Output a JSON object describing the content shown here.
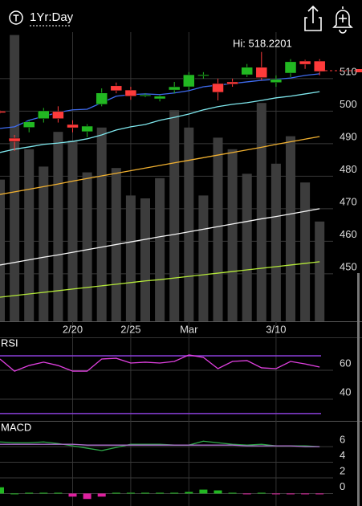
{
  "header": {
    "period": "1Yr:Day"
  },
  "chart_data": [
    {
      "type": "candlestick",
      "annotation": "Hi: 518.2201",
      "categories": [
        null,
        null,
        null,
        null,
        null,
        "2/20",
        null,
        null,
        null,
        "2/25",
        null,
        null,
        null,
        "Mar",
        null,
        null,
        null,
        null,
        null,
        "3/10",
        null,
        null,
        null
      ],
      "open": [
        500,
        491.7,
        495,
        497.7,
        499.9,
        495.9,
        493.7,
        502.1,
        507.8,
        506.5,
        504.8,
        503.8,
        506.5,
        507.5,
        511.0,
        508.5,
        509,
        511.2,
        513.5,
        508.8,
        511.7,
        515.4,
        515.4
      ],
      "close": [
        499.5,
        490.7,
        496.7,
        500.1,
        497.7,
        494.9,
        495.4,
        505.6,
        506.3,
        504.6,
        505.0,
        504.6,
        507.5,
        511.2,
        511.2,
        505.8,
        508.3,
        513.5,
        510.3,
        509.8,
        515.2,
        514.4,
        512.2
      ],
      "high": [
        500.2,
        492.7,
        497.2,
        501,
        501.5,
        497.2,
        496,
        507,
        508.8,
        507.5,
        505.5,
        505,
        509,
        512,
        512,
        510,
        510,
        514.5,
        518.2,
        511,
        516,
        515.8,
        516
      ],
      "low": [
        499.3,
        487.8,
        493.5,
        496.5,
        496.5,
        493.5,
        492,
        501.5,
        505.5,
        503.5,
        504.3,
        503,
        505.5,
        506.5,
        510,
        503.3,
        507.5,
        510.5,
        509.5,
        507.5,
        510.5,
        513,
        511
      ],
      "up_color": "#22b822",
      "down_color": "#ff3b3b",
      "volume": {
        "color": "#3c3c3c",
        "vlim": [
          0,
          200
        ],
        "values": [
          98,
          198,
          119,
          107,
          131,
          125,
          103,
          134,
          106,
          87,
          85,
          99,
          146,
          134,
          87,
          127,
          119,
          102,
          151,
          109,
          128,
          96,
          69
        ]
      },
      "series": [
        {
          "color": "#3f6cf0",
          "values": [
            494.7,
            495.2,
            497.2,
            498.4,
            499.6,
            500.4,
            500.6,
            502.6,
            504.6,
            505.1,
            505.3,
            505.1,
            505.6,
            506.3,
            507.5,
            508,
            508.5,
            509,
            509.5,
            509.8,
            510.2,
            511,
            511.5
          ]
        },
        {
          "color": "#7fe8ee",
          "values": [
            487.3,
            488.3,
            489,
            489.8,
            490.2,
            490.7,
            491.5,
            492.7,
            494.2,
            495.2,
            495.9,
            497.2,
            498.1,
            499.1,
            500.4,
            501.4,
            502.1,
            502.6,
            503.3,
            504.1,
            504.6,
            505.3,
            506
          ]
        },
        {
          "color": "#f0b030",
          "values": [
            474.4,
            475.2,
            476,
            476.8,
            477.6,
            478.5,
            479.3,
            480.1,
            480.9,
            481.7,
            482.5,
            483.3,
            484.1,
            484.9,
            485.7,
            486.5,
            487.3,
            488.1,
            488.9,
            489.8,
            490.6,
            491.4,
            492.2
          ]
        },
        {
          "color": "#f4f4f4",
          "values": [
            452.7,
            453.5,
            454.3,
            455.1,
            455.8,
            456.6,
            457.4,
            458.2,
            459,
            459.8,
            460.6,
            461.4,
            462.1,
            462.9,
            463.7,
            464.5,
            465.3,
            466.1,
            466.9,
            467.6,
            468.4,
            469.2,
            470
          ]
        },
        {
          "color": "#b4e83a",
          "values": [
            442.8,
            443.3,
            443.8,
            444.3,
            444.8,
            445.3,
            445.8,
            446.3,
            446.8,
            447.3,
            447.8,
            448.2,
            448.7,
            449.2,
            449.7,
            450.2,
            450.7,
            451.2,
            451.7,
            452.2,
            452.7,
            453.2,
            453.7
          ]
        }
      ],
      "ylim": [
        435.4,
        524.3
      ],
      "yticks": [
        450,
        460,
        470,
        480,
        490,
        500,
        510
      ],
      "grid": true
    },
    {
      "type": "line",
      "label": "RSI",
      "series": [
        {
          "color": "#e040e0",
          "values": [
            67.8,
            59.4,
            63.3,
            65.6,
            63.3,
            59.4,
            59.4,
            67.8,
            68.3,
            65,
            65.6,
            65,
            66.1,
            70.6,
            68.9,
            61.1,
            66.1,
            66.7,
            61.7,
            61.1,
            66.1,
            64.4,
            62.2
          ]
        }
      ],
      "levels": [
        70,
        30
      ],
      "level_color": "#8a3fd8",
      "ylim": [
        24.4,
        82.8
      ],
      "yticks": [
        40,
        60
      ],
      "grid": true
    },
    {
      "type": "macd",
      "label": "MACD",
      "series": [
        {
          "color": "#2fa84a",
          "values": [
            6.6,
            6.5,
            6.5,
            6.6,
            6.4,
            6.1,
            5.8,
            5.5,
            5.9,
            6.3,
            6.3,
            6.3,
            6.2,
            6.2,
            6.7,
            6.5,
            6.3,
            6.2,
            6.3,
            6.1,
            6.1,
            6.1,
            6.0
          ]
        },
        {
          "color": "#b070d0",
          "values": [
            6.3,
            6.3,
            6.3,
            6.3,
            6.3,
            6.3,
            6.2,
            6.2,
            6.2,
            6.2,
            6.2,
            6.2,
            6.2,
            6.2,
            6.2,
            6.2,
            6.2,
            6.1,
            6.1,
            6.1,
            6.1,
            6.0,
            6.0
          ]
        }
      ],
      "histogram": {
        "up_color": "#22b822",
        "down_color": "#e020a0",
        "values": [
          0.8,
          0,
          0.1,
          0.1,
          0.1,
          -0.4,
          -0.7,
          -0.4,
          0.1,
          0.1,
          0.1,
          0.1,
          0.1,
          0.2,
          0.5,
          0.4,
          0.1,
          -0.1,
          0.1,
          -0.1,
          -0.1,
          -0.1,
          -0.1
        ]
      },
      "ylim": [
        -1.6,
        9.2
      ],
      "yticks": [
        0,
        2,
        4,
        6
      ],
      "grid": true
    }
  ]
}
